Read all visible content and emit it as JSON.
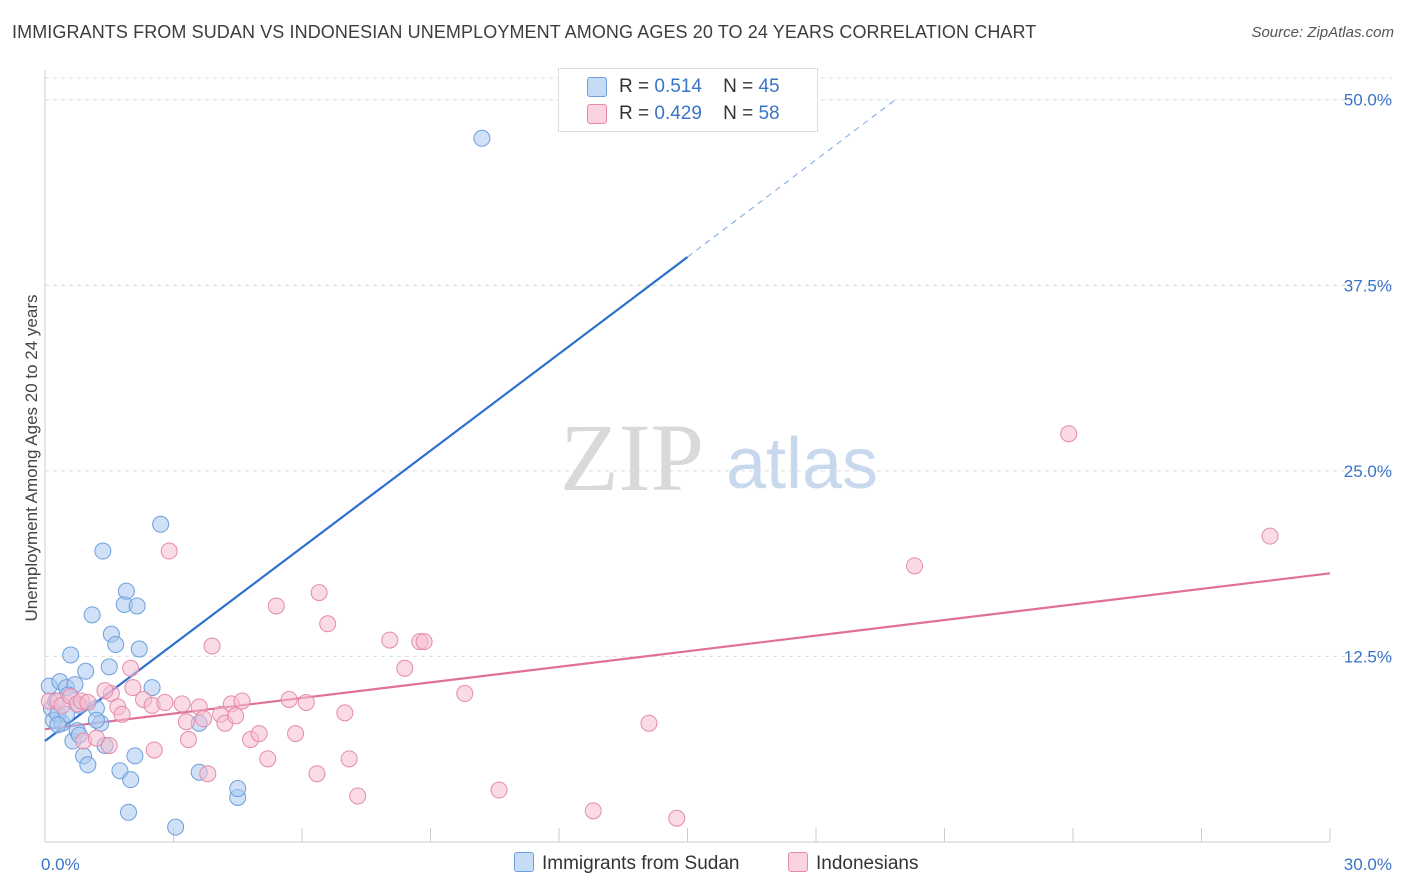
{
  "title": "IMMIGRANTS FROM SUDAN VS INDONESIAN UNEMPLOYMENT AMONG AGES 20 TO 24 YEARS CORRELATION CHART",
  "source": "Source: ZipAtlas.com",
  "watermark": {
    "zip": "ZIP",
    "atlas": "atlas"
  },
  "legend": {
    "sudan": {
      "r_label": "R =",
      "r_value": "0.514",
      "n_label": "N =",
      "n_value": "45"
    },
    "indonesian": {
      "r_label": "R =",
      "r_value": "0.429",
      "n_label": "N =",
      "n_value": "58"
    }
  },
  "colors": {
    "sudan_fill": "#aac8f0",
    "sudan_stroke": "#6d9fdc",
    "sudan_line": "#2f6fcf",
    "indo_fill": "#f6bdd0",
    "indo_stroke": "#e58aaa",
    "indo_line": "#e0709a",
    "axis_text": "#3a74c8"
  },
  "chart_data": {
    "type": "scatter",
    "title": "IMMIGRANTS FROM SUDAN VS INDONESIAN UNEMPLOYMENT AMONG AGES 20 TO 24 YEARS CORRELATION CHART",
    "xlabel": "",
    "ylabel": "Unemployment Among Ages 20 to 24 years",
    "xlim": [
      0,
      30
    ],
    "ylim": [
      0,
      52
    ],
    "x_tick_labels": [
      {
        "value": 0,
        "label": "0.0%"
      },
      {
        "value": 30,
        "label": "30.0%"
      }
    ],
    "y_tick_labels": [
      {
        "value": 12.5,
        "label": "12.5%"
      },
      {
        "value": 25,
        "label": "25.0%"
      },
      {
        "value": 37.5,
        "label": "37.5%"
      },
      {
        "value": 50,
        "label": "50.0%"
      }
    ],
    "x_minor_ticks": [
      0,
      3,
      6,
      9,
      12,
      15,
      18,
      21,
      24,
      27,
      30
    ],
    "grid": "horizontal dashed",
    "legend_position": "top-center",
    "series": [
      {
        "name": "Immigrants from Sudan",
        "color": "#aac8f0",
        "points": [
          [
            0.1,
            10.5
          ],
          [
            0.15,
            9.0
          ],
          [
            0.2,
            8.2
          ],
          [
            0.25,
            9.5
          ],
          [
            0.3,
            8.6
          ],
          [
            0.35,
            10.8
          ],
          [
            0.4,
            8.0
          ],
          [
            0.5,
            10.4
          ],
          [
            0.5,
            8.6
          ],
          [
            0.6,
            12.6
          ],
          [
            0.65,
            6.8
          ],
          [
            0.7,
            10.6
          ],
          [
            0.75,
            7.5
          ],
          [
            0.8,
            9.2
          ],
          [
            0.9,
            5.8
          ],
          [
            0.95,
            11.5
          ],
          [
            1.0,
            5.2
          ],
          [
            1.1,
            15.3
          ],
          [
            1.2,
            9.0
          ],
          [
            1.3,
            8.0
          ],
          [
            1.35,
            19.6
          ],
          [
            1.4,
            6.5
          ],
          [
            1.5,
            11.8
          ],
          [
            1.55,
            14.0
          ],
          [
            1.65,
            13.3
          ],
          [
            1.75,
            4.8
          ],
          [
            1.85,
            16.0
          ],
          [
            1.95,
            2.0
          ],
          [
            1.9,
            16.9
          ],
          [
            2.0,
            4.2
          ],
          [
            2.1,
            5.8
          ],
          [
            2.15,
            15.9
          ],
          [
            2.2,
            13.0
          ],
          [
            2.5,
            10.4
          ],
          [
            2.7,
            21.4
          ],
          [
            3.05,
            1.0
          ],
          [
            3.6,
            8.0
          ],
          [
            3.6,
            4.7
          ],
          [
            4.5,
            3.0
          ],
          [
            4.5,
            3.6
          ],
          [
            10.2,
            47.4
          ],
          [
            0.3,
            7.9
          ],
          [
            0.55,
            9.9
          ],
          [
            1.2,
            8.2
          ],
          [
            0.8,
            7.2
          ]
        ]
      },
      {
        "name": "Indonesians",
        "color": "#f6bdd0",
        "points": [
          [
            0.1,
            9.5
          ],
          [
            0.3,
            9.5
          ],
          [
            0.4,
            9.2
          ],
          [
            0.6,
            9.8
          ],
          [
            0.75,
            9.3
          ],
          [
            0.85,
            9.5
          ],
          [
            0.9,
            6.8
          ],
          [
            1.0,
            9.4
          ],
          [
            1.2,
            7.0
          ],
          [
            1.5,
            6.5
          ],
          [
            1.55,
            10.0
          ],
          [
            1.7,
            9.1
          ],
          [
            1.8,
            8.6
          ],
          [
            2.0,
            11.7
          ],
          [
            2.05,
            10.4
          ],
          [
            2.3,
            9.6
          ],
          [
            2.5,
            9.2
          ],
          [
            2.55,
            6.2
          ],
          [
            2.8,
            9.4
          ],
          [
            2.9,
            19.6
          ],
          [
            3.2,
            9.3
          ],
          [
            3.3,
            8.1
          ],
          [
            3.35,
            6.9
          ],
          [
            3.6,
            9.1
          ],
          [
            3.7,
            8.3
          ],
          [
            3.8,
            4.6
          ],
          [
            3.9,
            13.2
          ],
          [
            4.1,
            8.6
          ],
          [
            4.2,
            8.0
          ],
          [
            4.35,
            9.3
          ],
          [
            4.45,
            8.5
          ],
          [
            4.6,
            9.5
          ],
          [
            4.8,
            6.9
          ],
          [
            5.0,
            7.3
          ],
          [
            5.2,
            5.6
          ],
          [
            5.4,
            15.9
          ],
          [
            5.7,
            9.6
          ],
          [
            5.85,
            7.3
          ],
          [
            6.1,
            9.4
          ],
          [
            6.4,
            16.8
          ],
          [
            6.35,
            4.6
          ],
          [
            6.6,
            14.7
          ],
          [
            7.0,
            8.7
          ],
          [
            7.1,
            5.6
          ],
          [
            7.3,
            3.1
          ],
          [
            8.05,
            13.6
          ],
          [
            8.4,
            11.7
          ],
          [
            8.75,
            13.5
          ],
          [
            8.85,
            13.5
          ],
          [
            9.8,
            10.0
          ],
          [
            10.6,
            3.5
          ],
          [
            12.8,
            2.1
          ],
          [
            14.1,
            8.0
          ],
          [
            14.75,
            1.6
          ],
          [
            20.3,
            18.6
          ],
          [
            23.9,
            27.5
          ],
          [
            28.6,
            20.6
          ],
          [
            1.4,
            10.2
          ]
        ]
      }
    ],
    "trend_lines": [
      {
        "series": "Immigrants from Sudan",
        "x": [
          0,
          15
        ],
        "y": [
          6.8,
          39.4
        ],
        "extension_dashed_to": [
          19.9,
          50.1
        ]
      },
      {
        "series": "Indonesians",
        "x": [
          0,
          30
        ],
        "y": [
          7.6,
          18.1
        ]
      }
    ]
  },
  "bottom_legend": {
    "sudan": "Immigrants from Sudan",
    "indonesian": "Indonesians"
  }
}
